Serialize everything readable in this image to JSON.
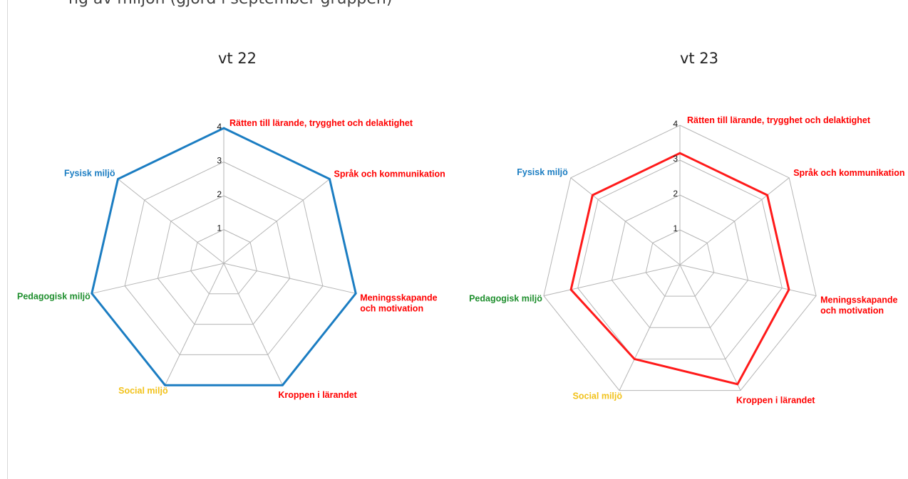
{
  "header": {
    "clipped_text": "ng av miljön (gjord i september gruppen)"
  },
  "chart_data": [
    {
      "type": "radar",
      "title": "vt 22",
      "rmax": 4,
      "ticks": [
        "1",
        "2",
        "3",
        "4"
      ],
      "grid": true,
      "series_color": "#1b7dc2",
      "categories": [
        {
          "label_lines": [
            "Rätten till lärande, trygghet och delaktighet"
          ],
          "color": "#ff0000"
        },
        {
          "label_lines": [
            "Språk och kommunikation"
          ],
          "color": "#ff0000"
        },
        {
          "label_lines": [
            "Meningsskapande",
            "och motivation"
          ],
          "color": "#ff0000"
        },
        {
          "label_lines": [
            "Kroppen i lärandet"
          ],
          "color": "#ff0000"
        },
        {
          "label_lines": [
            "Social miljö"
          ],
          "color": "#f2c21b"
        },
        {
          "label_lines": [
            "Pedagogisk miljö"
          ],
          "color": "#1f8f2e"
        },
        {
          "label_lines": [
            "Fysisk miljö"
          ],
          "color": "#1b7dc2"
        }
      ],
      "values": [
        4,
        4,
        4,
        4,
        4,
        4,
        4
      ]
    },
    {
      "type": "radar",
      "title": "vt 23",
      "rmax": 4,
      "ticks": [
        "1",
        "2",
        "3",
        "4"
      ],
      "grid": true,
      "series_color": "#ff1a1a",
      "categories": [
        {
          "label_lines": [
            "Rätten till lärande, trygghet och delaktighet"
          ],
          "color": "#ff0000"
        },
        {
          "label_lines": [
            "Språk och kommunikation"
          ],
          "color": "#ff0000"
        },
        {
          "label_lines": [
            "Meningsskapande",
            "och motivation"
          ],
          "color": "#ff0000"
        },
        {
          "label_lines": [
            "Kroppen i lärandet"
          ],
          "color": "#ff0000"
        },
        {
          "label_lines": [
            "Social miljö"
          ],
          "color": "#f2c21b"
        },
        {
          "label_lines": [
            "Pedagogisk miljö"
          ],
          "color": "#1f8f2e"
        },
        {
          "label_lines": [
            "Fysisk miljö"
          ],
          "color": "#1b7dc2"
        }
      ],
      "values": [
        3.2,
        3.2,
        3.2,
        3.8,
        3,
        3.2,
        3.2
      ]
    }
  ]
}
